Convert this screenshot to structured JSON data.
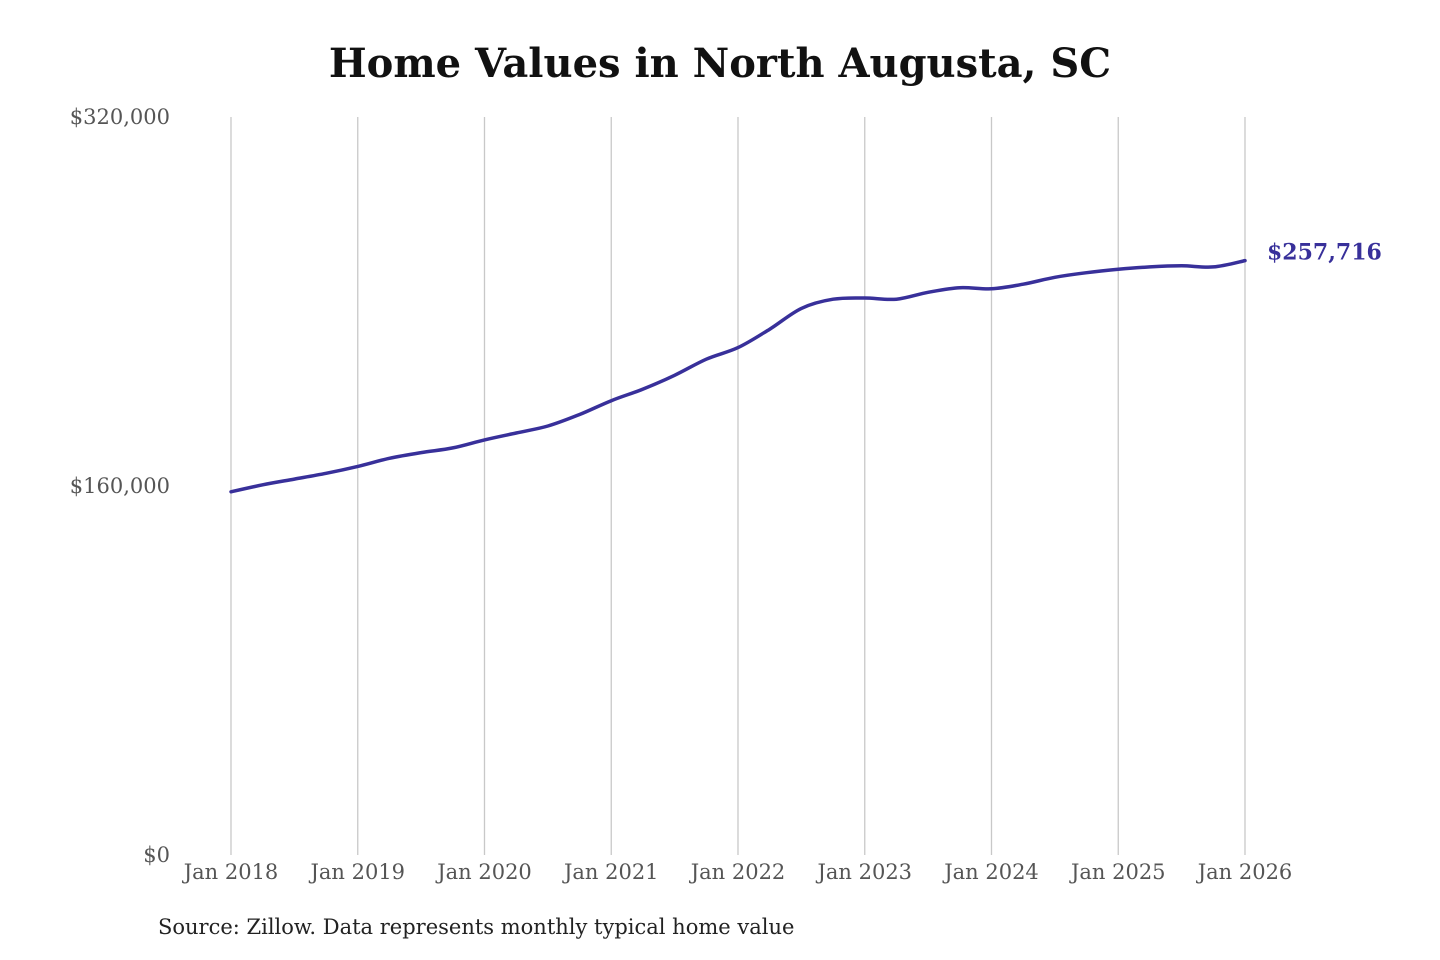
{
  "chart_data": {
    "type": "line",
    "title": "Home Values in North Augusta, SC",
    "xlabel": "",
    "ylabel": "",
    "ylim": [
      0,
      320000
    ],
    "y_ticks": [
      {
        "value": 0,
        "label": "$0"
      },
      {
        "value": 160000,
        "label": "$160,000"
      },
      {
        "value": 320000,
        "label": "$320,000"
      }
    ],
    "x_ticks": [
      {
        "value": 2018,
        "label": "Jan 2018"
      },
      {
        "value": 2019,
        "label": "Jan 2019"
      },
      {
        "value": 2020,
        "label": "Jan 2020"
      },
      {
        "value": 2021,
        "label": "Jan 2021"
      },
      {
        "value": 2022,
        "label": "Jan 2022"
      },
      {
        "value": 2023,
        "label": "Jan 2023"
      },
      {
        "value": 2024,
        "label": "Jan 2024"
      },
      {
        "value": 2025,
        "label": "Jan 2025"
      },
      {
        "value": 2026,
        "label": "Jan 2026"
      }
    ],
    "xlim": [
      2018,
      2026
    ],
    "grid": "vertical",
    "series": [
      {
        "color": "#38309a",
        "end_label": "$257,716",
        "x": [
          "Jan 2018",
          "Apr 2018",
          "Jul 2018",
          "Oct 2018",
          "Jan 2019",
          "Apr 2019",
          "Jul 2019",
          "Oct 2019",
          "Jan 2020",
          "Apr 2020",
          "Jul 2020",
          "Oct 2020",
          "Jan 2021",
          "Apr 2021",
          "Jul 2021",
          "Oct 2021",
          "Jan 2022",
          "Apr 2022",
          "Jul 2022",
          "Oct 2022",
          "Jan 2023",
          "Apr 2023",
          "Jul 2023",
          "Oct 2023",
          "Jan 2024",
          "Apr 2024",
          "Jul 2024",
          "Oct 2024",
          "Jan 2025",
          "Apr 2025",
          "Jul 2025",
          "Oct 2025",
          "Jan 2026"
        ],
        "values": [
          157500,
          160500,
          163000,
          165500,
          168500,
          172000,
          174500,
          176500,
          180000,
          183000,
          186000,
          191000,
          197000,
          202000,
          208000,
          215000,
          220000,
          228000,
          237000,
          241000,
          241500,
          241000,
          244000,
          246000,
          245500,
          247500,
          250500,
          252500,
          254000,
          255000,
          255500,
          255000,
          257716
        ]
      }
    ]
  },
  "source_note": "Source: Zillow. Data represents monthly typical home value"
}
